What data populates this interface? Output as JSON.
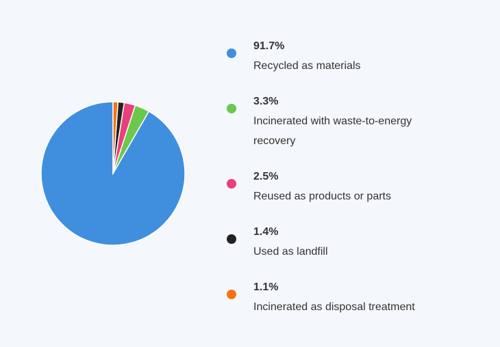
{
  "chart_data": {
    "type": "pie",
    "categories": [
      "Recycled as materials",
      "Incinerated with waste-to-energy recovery",
      "Reused as products or parts",
      "Used as landfill",
      "Incinerated as disposal treatment"
    ],
    "values": [
      91.7,
      3.3,
      2.5,
      1.4,
      1.1
    ],
    "value_labels": [
      "91.7%",
      "3.3%",
      "2.5%",
      "1.4%",
      "1.1%"
    ],
    "colors": [
      "#3f8fde",
      "#6cc84a",
      "#e8407a",
      "#222222",
      "#f57316"
    ]
  }
}
